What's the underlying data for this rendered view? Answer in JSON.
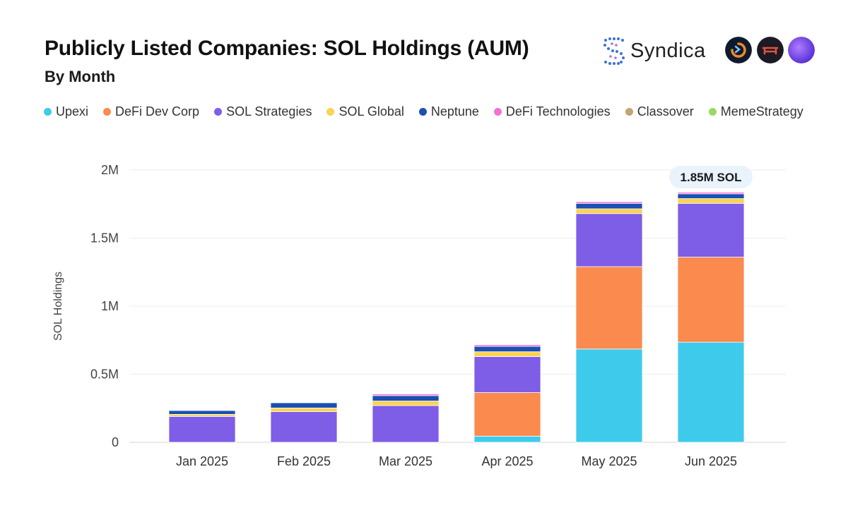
{
  "header": {
    "title": "Publicly Listed Companies: SOL Holdings (AUM)",
    "subtitle": "By Month",
    "brand": "Syndica"
  },
  "icons": [
    "syndica-logo-icon",
    "partner-logo-orange-icon",
    "partner-logo-red-icon",
    "partner-logo-purple-icon"
  ],
  "chart_data": {
    "type": "bar",
    "stacked": true,
    "title": "Publicly Listed Companies: SOL Holdings (AUM)",
    "subtitle": "By Month",
    "xlabel": "",
    "ylabel": "SOL Holdings",
    "ylim": [
      0,
      2000000
    ],
    "yticks": [
      {
        "value": 0,
        "label": "0"
      },
      {
        "value": 500000,
        "label": "0.5M"
      },
      {
        "value": 1000000,
        "label": "1M"
      },
      {
        "value": 1500000,
        "label": "1.5M"
      },
      {
        "value": 2000000,
        "label": "2M"
      }
    ],
    "grid": true,
    "legend_position": "top",
    "categories": [
      "Jan 2025",
      "Feb 2025",
      "Mar 2025",
      "Apr 2025",
      "May 2025",
      "Jun 2025"
    ],
    "series": [
      {
        "name": "Upexi",
        "color": "#3ecbeb",
        "values": [
          0,
          0,
          0,
          45000,
          685000,
          735000
        ]
      },
      {
        "name": "DeFi Dev Corp",
        "color": "#fa8a4e",
        "values": [
          0,
          0,
          0,
          320000,
          605000,
          625000
        ]
      },
      {
        "name": "SOL Strategies",
        "color": "#7e5de7",
        "values": [
          190000,
          225000,
          270000,
          265000,
          390000,
          395000
        ]
      },
      {
        "name": "SOL Global",
        "color": "#fbd34f",
        "values": [
          15000,
          27000,
          33000,
          35000,
          35000,
          35000
        ]
      },
      {
        "name": "Neptune",
        "color": "#1b4fb1",
        "values": [
          28000,
          38000,
          40000,
          40000,
          40000,
          35000
        ]
      },
      {
        "name": "DeFi Technologies",
        "color": "#f46fd8",
        "values": [
          0,
          0,
          12000,
          12000,
          12000,
          12000
        ]
      },
      {
        "name": "Classover",
        "color": "#c2a573",
        "values": [
          0,
          0,
          0,
          0,
          0,
          5000
        ]
      },
      {
        "name": "MemeStrategy",
        "color": "#9ad961",
        "values": [
          0,
          0,
          0,
          0,
          0,
          3000
        ]
      }
    ],
    "annotations": [
      {
        "category": "Jun 2025",
        "text": "1.85M SOL"
      }
    ]
  }
}
